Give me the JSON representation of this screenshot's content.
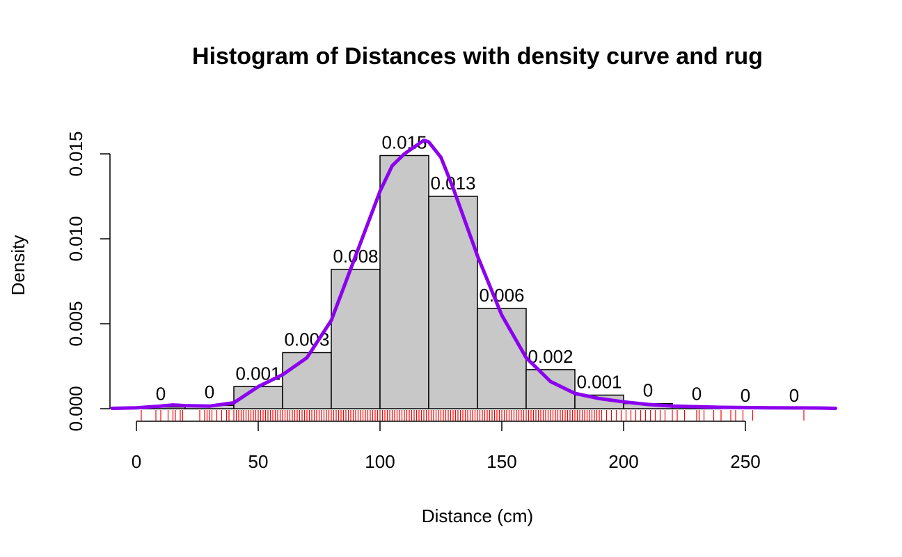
{
  "chart_data": {
    "type": "bar",
    "title": "Histogram of Distances with density curve and rug",
    "xlabel": "Distance (cm)",
    "ylabel": "Density",
    "xlim": [
      -10,
      287
    ],
    "ylim": [
      0,
      0.016
    ],
    "x_ticks": [
      0,
      50,
      100,
      150,
      200,
      250
    ],
    "y_ticks": [
      0.0,
      0.005,
      0.01,
      0.015
    ],
    "y_tick_labels": [
      "0.000",
      "0.005",
      "0.010",
      "0.015"
    ],
    "bins": [
      {
        "from": 0,
        "to": 20,
        "value": 0.0001,
        "label": "0"
      },
      {
        "from": 20,
        "to": 40,
        "value": 0.0002,
        "label": "0"
      },
      {
        "from": 40,
        "to": 60,
        "value": 0.0013,
        "label": "0.001"
      },
      {
        "from": 60,
        "to": 80,
        "value": 0.0033,
        "label": "0.003"
      },
      {
        "from": 80,
        "to": 100,
        "value": 0.0082,
        "label": "0.008"
      },
      {
        "from": 100,
        "to": 120,
        "value": 0.0149,
        "label": "0.015"
      },
      {
        "from": 120,
        "to": 140,
        "value": 0.0125,
        "label": "0.013"
      },
      {
        "from": 140,
        "to": 160,
        "value": 0.0059,
        "label": "0.006"
      },
      {
        "from": 160,
        "to": 180,
        "value": 0.0023,
        "label": "0.002"
      },
      {
        "from": 180,
        "to": 200,
        "value": 0.0008,
        "label": "0.001"
      },
      {
        "from": 200,
        "to": 220,
        "value": 0.0003,
        "label": "0"
      },
      {
        "from": 220,
        "to": 240,
        "value": 0.0001,
        "label": "0"
      },
      {
        "from": 240,
        "to": 260,
        "value": 0.0,
        "label": "0"
      },
      {
        "from": 260,
        "to": 280,
        "value": 0.0,
        "label": "0"
      }
    ],
    "density_curve": {
      "color": "#8B00EE",
      "x": [
        -10,
        0,
        10,
        15,
        20,
        30,
        40,
        50,
        60,
        70,
        80,
        90,
        100,
        105,
        110,
        115,
        118,
        120,
        125,
        130,
        140,
        150,
        160,
        170,
        180,
        190,
        200,
        210,
        220,
        240,
        260,
        280,
        287
      ],
      "y": [
        2e-05,
        5e-05,
        0.00015,
        0.00022,
        0.00018,
        0.00015,
        0.00035,
        0.0013,
        0.002,
        0.003,
        0.0052,
        0.009,
        0.0128,
        0.0143,
        0.015,
        0.0155,
        0.0158,
        0.0157,
        0.0148,
        0.013,
        0.009,
        0.0055,
        0.003,
        0.0016,
        0.0009,
        0.0006,
        0.0004,
        0.00025,
        0.00015,
        8e-05,
        5e-05,
        4e-05,
        2e-05
      ]
    },
    "rug": {
      "color": "#FF0000",
      "values": [
        2,
        8,
        10,
        13,
        15,
        16,
        18,
        19,
        26,
        28,
        29,
        30,
        31,
        33,
        35,
        37,
        38,
        40,
        41,
        42,
        43,
        44,
        45,
        46,
        47,
        48,
        49,
        50,
        51,
        52,
        53,
        54,
        55,
        56,
        57,
        58,
        59,
        60,
        61,
        62,
        63,
        64,
        65,
        66,
        67,
        68,
        69,
        70,
        71,
        72,
        73,
        74,
        75,
        76,
        77,
        78,
        79,
        80,
        81,
        82,
        83,
        84,
        85,
        86,
        87,
        88,
        89,
        90,
        91,
        92,
        93,
        94,
        95,
        96,
        97,
        98,
        99,
        100,
        101,
        102,
        103,
        104,
        105,
        106,
        107,
        108,
        109,
        110,
        111,
        112,
        113,
        114,
        115,
        116,
        117,
        118,
        119,
        120,
        121,
        122,
        123,
        124,
        125,
        126,
        127,
        128,
        129,
        130,
        131,
        132,
        133,
        134,
        135,
        136,
        137,
        138,
        139,
        140,
        141,
        142,
        143,
        144,
        145,
        146,
        147,
        148,
        149,
        150,
        151,
        152,
        153,
        154,
        155,
        156,
        157,
        158,
        159,
        160,
        161,
        162,
        163,
        164,
        165,
        166,
        167,
        168,
        169,
        170,
        171,
        172,
        173,
        174,
        175,
        176,
        177,
        178,
        179,
        180,
        181,
        182,
        183,
        184,
        185,
        186,
        187,
        188,
        189,
        190,
        191,
        193,
        195,
        197,
        199,
        201,
        203,
        205,
        207,
        209,
        211,
        213,
        215,
        217,
        220,
        222,
        225,
        230,
        231,
        233,
        237,
        240,
        244,
        246,
        249,
        253,
        274
      ]
    },
    "bar_fill": "#C8C8C8",
    "bar_stroke": "#000000",
    "grid": false,
    "legend": "none"
  }
}
